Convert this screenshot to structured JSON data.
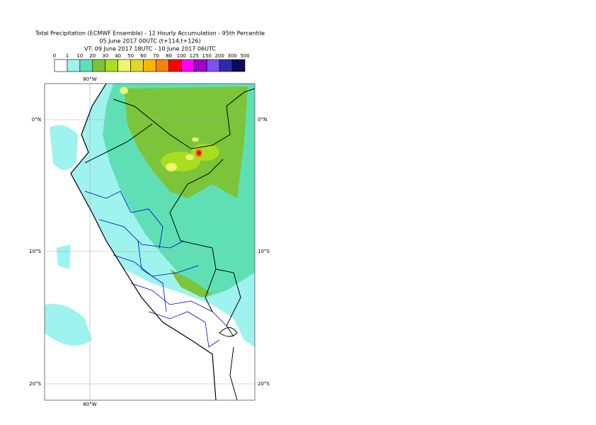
{
  "title_lines": [
    "Total Precipitation (ECMWF Ensemble) - 12 Hourly Accumulation - 95th Percentile",
    "05 June 2017 00UTC (t+114,t+126)",
    "VT: 09 June 2017 18UTC - 10 June 2017 06UTC"
  ],
  "colorbar": {
    "labels": [
      0,
      1,
      10,
      20,
      30,
      40,
      50,
      60,
      70,
      80,
      100,
      125,
      150,
      200,
      300,
      500
    ],
    "colors": [
      "#ffffff",
      "#9ef3ee",
      "#5fe0b4",
      "#7cc43a",
      "#a8de1e",
      "#eef56e",
      "#e2d628",
      "#f5b800",
      "#f78400",
      "#ff0000",
      "#ff00ff",
      "#a000c8",
      "#7a52f0",
      "#2a2ab0",
      "#0c0c5a"
    ]
  },
  "grid": {
    "lon_labels": [
      "80°W"
    ],
    "lat_labels": [
      "0°N",
      "10°S",
      "20°S"
    ]
  }
}
